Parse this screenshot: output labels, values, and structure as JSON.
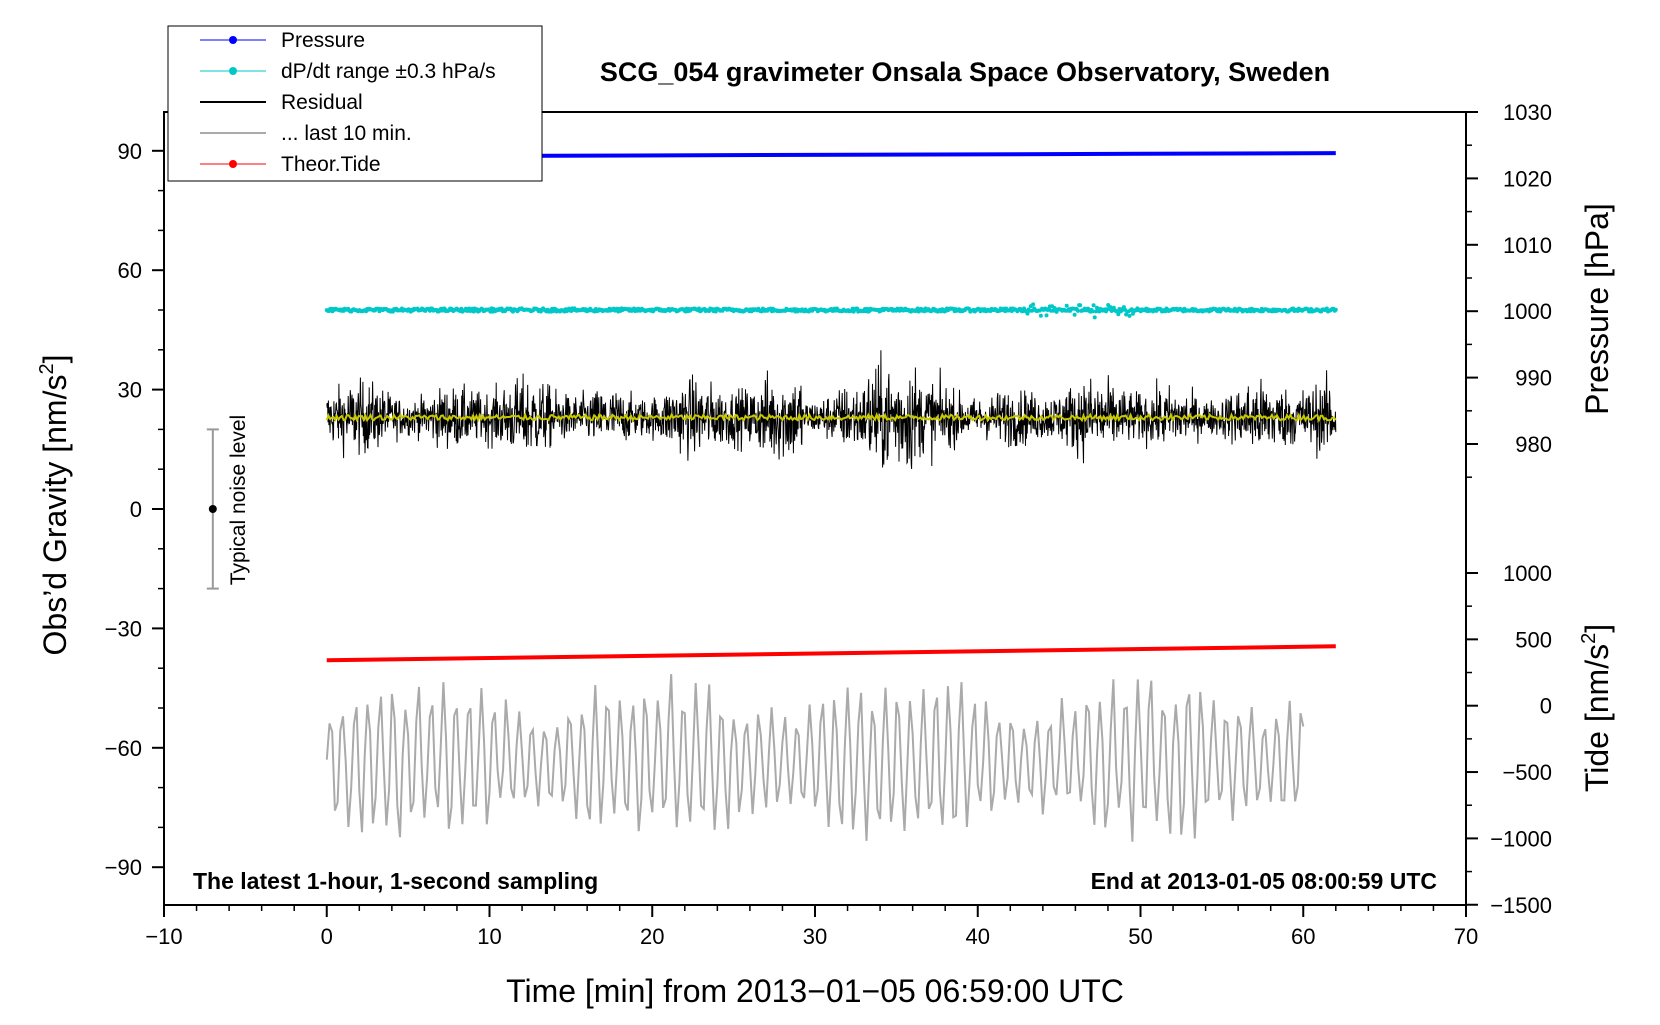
{
  "chart_data": {
    "type": "line",
    "title": "SCG_054 gravimeter Onsala Space Observatory, Sweden",
    "xlabel": "Time [min] from 2013−01−05 06:59:00 UTC",
    "ylabel_left": "Obs’d Gravity [nm/s",
    "ylabel_left_sup": "2",
    "ylabel_left_close": "]",
    "ylabel_right_top": "Pressure [hPa]",
    "ylabel_right_bottom": "Tide [nm/s",
    "ylabel_right_bottom_sup": "2",
    "ylabel_right_bottom_close": "]",
    "xlim": [
      -10,
      70
    ],
    "ylim_left": [
      -100,
      100
    ],
    "x_ticks": [
      "−10",
      "0",
      "10",
      "20",
      "30",
      "40",
      "50",
      "60",
      "70"
    ],
    "x_tick_values": [
      -10,
      0,
      10,
      20,
      30,
      40,
      50,
      60,
      70
    ],
    "y_ticks_left": [
      "90",
      "60",
      "30",
      "0",
      "−30",
      "−60",
      "−90"
    ],
    "y_tick_values_left": [
      90,
      60,
      30,
      0,
      -30,
      -60,
      -90
    ],
    "pressure_axis": {
      "ticks": [
        "1030",
        "1020",
        "1010",
        "1000",
        "990",
        "980"
      ],
      "values": [
        1030,
        1020,
        1010,
        1000,
        990,
        980
      ]
    },
    "tide_axis": {
      "ticks": [
        "1000",
        "500",
        "0",
        "−500",
        "−1000",
        "−1500"
      ],
      "values": [
        1000,
        500,
        0,
        -500,
        -1000,
        -1500
      ]
    },
    "legend": [
      {
        "label": "Pressure",
        "color": "#0000ff",
        "marker": "dot"
      },
      {
        "label": "dP/dt range ±0.3 hPa/s",
        "color": "#00c8c8",
        "marker": "dot"
      },
      {
        "label": "Residual",
        "color": "#000000",
        "marker": "line"
      },
      {
        "label": "... last 10 min.",
        "color": "#aaaaaa",
        "marker": "line"
      },
      {
        "label": "Theor.Tide",
        "color": "#ff0000",
        "marker": "dot"
      }
    ],
    "series": [
      {
        "name": "Pressure",
        "axis": "pressure",
        "color": "#0000ff",
        "x_range": [
          0,
          62
        ],
        "values_start": 1023.3,
        "values_end": 1023.8
      },
      {
        "name": "dP/dt range",
        "axis": "left",
        "color": "#00c8c8",
        "x_range": [
          0,
          62
        ],
        "level": 50
      },
      {
        "name": "Residual",
        "axis": "left",
        "color": "#000000",
        "x_range": [
          0,
          62
        ],
        "center": 23,
        "amplitude": 15
      },
      {
        "name": "Residual smoothed",
        "axis": "left",
        "color": "#c8c800",
        "x_range": [
          0,
          62
        ],
        "level": 23
      },
      {
        "name": "Theor.Tide",
        "axis": "left",
        "color": "#ff0000",
        "x_range": [
          0,
          62
        ],
        "values_start": -38,
        "values_end": -34.5
      },
      {
        "name": "... last 10 min.",
        "axis": "left",
        "color": "#aaaaaa",
        "x_range": [
          0,
          60
        ],
        "center": -63,
        "amplitude": 16
      }
    ],
    "noise_bar": {
      "label": "Typical noise level",
      "x": -7,
      "center": 0,
      "low": -20,
      "high": 20
    },
    "annotations": {
      "bottom_left": "The latest 1-hour, 1-second sampling",
      "bottom_right": "End at 2013-01-05 08:00:59 UTC"
    },
    "colors": {
      "pressure": "#0000ff",
      "dpdt": "#00c8c8",
      "residual": "#000000",
      "smoothed": "#c8c800",
      "tide": "#ff0000",
      "last10": "#aaaaaa"
    }
  }
}
